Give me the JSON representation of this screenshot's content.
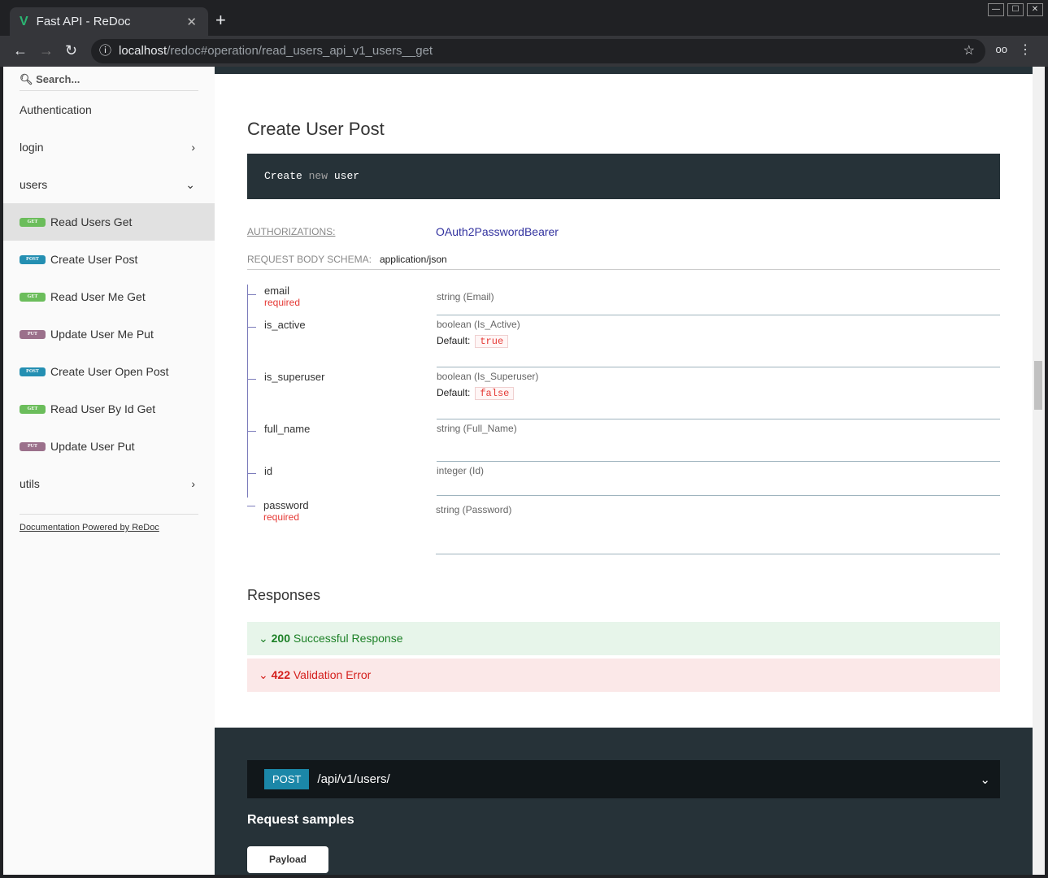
{
  "browser": {
    "tab_title": "Fast API - ReDoc",
    "url_host": "localhost",
    "url_path": "/redoc#operation/read_users_api_v1_users__get"
  },
  "sidebar": {
    "search_placeholder": "Search...",
    "items": [
      {
        "label": "Authentication"
      },
      {
        "label": "login",
        "chevron": "right"
      },
      {
        "label": "users",
        "chevron": "down"
      },
      {
        "label": "Read Users Get",
        "method": "GET",
        "selected": true
      },
      {
        "label": "Create User Post",
        "method": "POST"
      },
      {
        "label": "Read User Me Get",
        "method": "GET"
      },
      {
        "label": "Update User Me Put",
        "method": "PUT"
      },
      {
        "label": "Create User Open Post",
        "method": "POST"
      },
      {
        "label": "Read User By Id Get",
        "method": "GET"
      },
      {
        "label": "Update User Put",
        "method": "PUT"
      },
      {
        "label": "utils",
        "chevron": "right"
      }
    ],
    "powered": "Documentation Powered by ReDoc"
  },
  "colors": {
    "GET": "#6bbd5b",
    "POST": "#248fb2",
    "PUT": "#9b708b"
  },
  "main": {
    "title": "Create User Post",
    "desc_1": "Create",
    "desc_kw": "new",
    "desc_2": "user",
    "auth_label": "AUTHORIZATIONS:",
    "auth_value": "OAuth2PasswordBearer",
    "body_label": "REQUEST BODY SCHEMA:",
    "body_type": "application/json",
    "default_label": "Default:",
    "required": "required",
    "fields": [
      {
        "name": "email",
        "required": true,
        "type": "string (Email)"
      },
      {
        "name": "is_active",
        "type": "boolean (Is_Active)",
        "default": "true"
      },
      {
        "name": "is_superuser",
        "type": "boolean (Is_Superuser)",
        "default": "false"
      },
      {
        "name": "full_name",
        "type": "string (Full_Name)"
      },
      {
        "name": "id",
        "type": "integer (Id)"
      },
      {
        "name": "password",
        "required": true,
        "type": "string (Password)"
      }
    ],
    "responses_title": "Responses",
    "responses": [
      {
        "code": "200",
        "label": "Successful Response"
      },
      {
        "code": "422",
        "label": "Validation Error"
      }
    ],
    "endpoint_method": "POST",
    "endpoint_path": "/api/v1/users/",
    "samples_title": "Request samples",
    "payload_tab": "Payload"
  }
}
